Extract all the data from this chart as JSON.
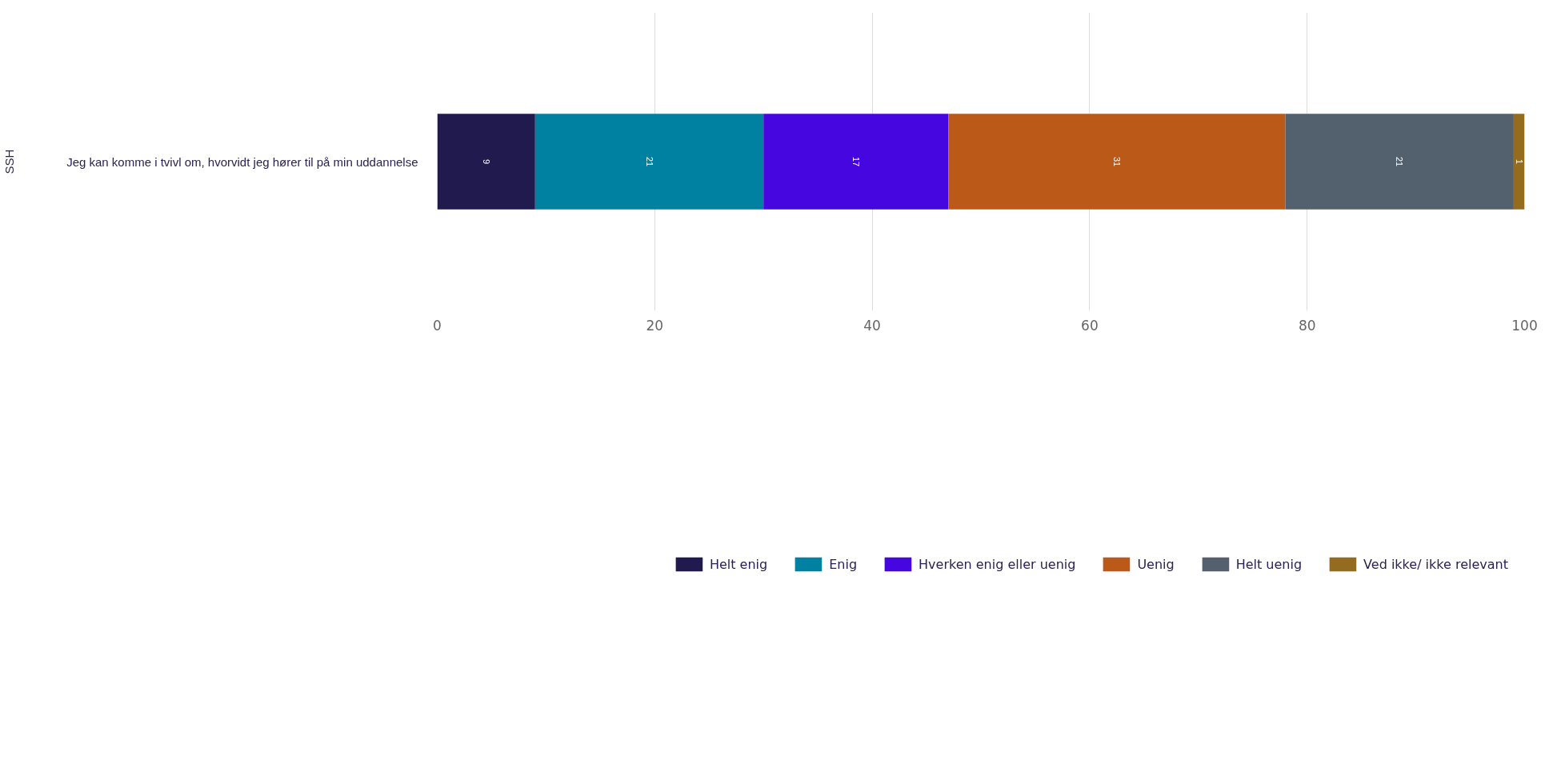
{
  "chart_data": {
    "type": "bar",
    "orientation": "horizontal",
    "stacked": true,
    "ylabel": "SSH",
    "categories": [
      "Jeg kan komme i tvivl om, hvorvidt jeg hører til på min uddannelse"
    ],
    "series": [
      {
        "name": "Helt enig",
        "color": "#211a4f",
        "values": [
          9
        ]
      },
      {
        "name": "Enig",
        "color": "#0081a1",
        "values": [
          21
        ]
      },
      {
        "name": "Hverken enig eller uenig",
        "color": "#4506e0",
        "values": [
          17
        ]
      },
      {
        "name": "Uenig",
        "color": "#bb5918",
        "values": [
          31
        ]
      },
      {
        "name": "Helt uenig",
        "color": "#53616e",
        "values": [
          21
        ]
      },
      {
        "name": "Ved ikke/ ikke relevant",
        "color": "#936c1f",
        "values": [
          1
        ]
      }
    ],
    "xlim": [
      0,
      100
    ],
    "xticks": [
      0,
      20,
      40,
      60,
      80,
      100
    ],
    "grid": "x",
    "legend": "bottom",
    "data_labels": true
  }
}
